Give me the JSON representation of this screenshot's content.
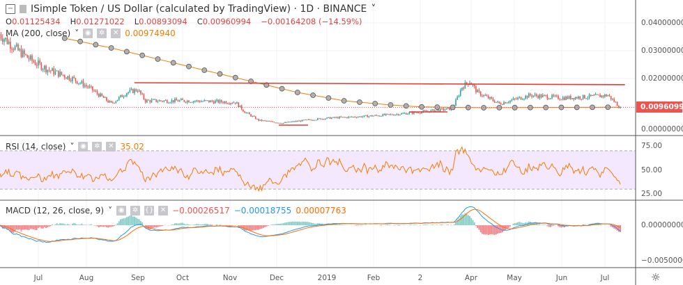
{
  "header": {
    "symbol_title": "ISimple Token / US Dollar (calculated by TradingView) · 1D · BINANCE",
    "ohlc": {
      "open_label": "O",
      "open": "0.01125434",
      "high_label": "H",
      "high": "0.01271022",
      "low_label": "L",
      "low": "0.00893094",
      "close_label": "C",
      "close": "0.00960994",
      "change": "−0.00164208 (−14.59%)"
    }
  },
  "indicators": {
    "ma": {
      "label": "MA (200, close)",
      "value": "0.00974940"
    },
    "rsi": {
      "label": "RSI (14, close)",
      "value": "35.02"
    },
    "macd": {
      "label": "MACD (12, 26, close, 9)",
      "hist": "−0.00026517",
      "macd": "−0.00018755",
      "signal": "0.00007763"
    }
  },
  "price_axis": [
    "0.04000000",
    "0.03000000",
    "0.02000000",
    "0.00000000"
  ],
  "current_price_tag": "0.00960994",
  "rsi_axis": [
    "75.00",
    "50.00",
    "25.00"
  ],
  "macd_axis": [
    "0.00000000",
    "−0.00500000"
  ],
  "time_axis": [
    "Jul",
    "Aug",
    "Sep",
    "Oct",
    "Nov",
    "Dec",
    "2019",
    "Feb",
    "2",
    "Apr",
    "May",
    "Jun",
    "Jul"
  ],
  "colors": {
    "up": "#26a69a",
    "down": "#ef5350",
    "ma": "#f57c00",
    "rsi": "#f57c00",
    "macd": "#2196f3",
    "signal": "#ff6d00",
    "resistance": "#e53935"
  },
  "chart_data": {
    "type": "candlestick",
    "price_path_day_price": [
      [
        -12,
        0.036
      ],
      [
        0,
        0.03
      ],
      [
        10,
        0.026
      ],
      [
        20,
        0.023
      ],
      [
        35,
        0.02
      ],
      [
        45,
        0.017
      ],
      [
        55,
        0.013
      ],
      [
        60,
        0.011
      ],
      [
        70,
        0.015
      ],
      [
        77,
        0.016
      ],
      [
        82,
        0.012
      ],
      [
        110,
        0.012
      ],
      [
        140,
        0.0115
      ],
      [
        146,
        0.008
      ],
      [
        155,
        0.005
      ],
      [
        170,
        0.004
      ],
      [
        185,
        0.005
      ],
      [
        200,
        0.0058
      ],
      [
        220,
        0.0063
      ],
      [
        240,
        0.007
      ],
      [
        260,
        0.008
      ],
      [
        280,
        0.0092
      ],
      [
        286,
        0.017
      ],
      [
        291,
        0.019
      ],
      [
        296,
        0.015
      ],
      [
        310,
        0.011
      ],
      [
        330,
        0.014
      ],
      [
        350,
        0.013
      ],
      [
        370,
        0.0135
      ],
      [
        380,
        0.014
      ],
      [
        388,
        0.0096
      ]
    ],
    "ma200_day_price": [
      [
        30,
        0.0345
      ],
      [
        60,
        0.031
      ],
      [
        90,
        0.027
      ],
      [
        120,
        0.023
      ],
      [
        150,
        0.019
      ],
      [
        180,
        0.015
      ],
      [
        210,
        0.012
      ],
      [
        240,
        0.0105
      ],
      [
        260,
        0.0098
      ],
      [
        300,
        0.0095
      ],
      [
        388,
        0.0097
      ]
    ],
    "resistance_day_price": [
      [
        75,
        0.0185
      ],
      [
        391,
        0.0178
      ]
    ],
    "price_range": [
      -0.0005,
      0.048
    ],
    "rsi_range": [
      0,
      100
    ],
    "rsi_levels": [
      30,
      70
    ],
    "macd_range": [
      -0.0063,
      0.0048
    ]
  }
}
